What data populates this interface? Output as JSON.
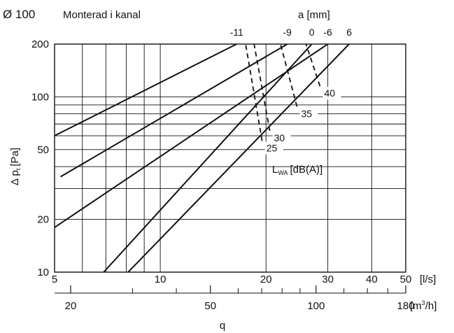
{
  "chart_data": {
    "type": "line",
    "title": "Ø 100",
    "subtitle": "Monterad i kanal",
    "xlabel": "q",
    "ylabel": "Δ p",
    "ylabel_sub": "t",
    "ylabel_unit": "[Pa]",
    "x_scale": "log",
    "y_scale": "log",
    "xlim": [
      5,
      50
    ],
    "ylim": [
      10,
      200
    ],
    "grid": true,
    "x_ticks": [
      {
        "value": 5,
        "label": "5"
      },
      {
        "value": 10,
        "label": "10"
      },
      {
        "value": 20,
        "label": "20"
      },
      {
        "value": 30,
        "label": "30"
      },
      {
        "value": 40,
        "label": "40"
      },
      {
        "value": 50,
        "label": "50"
      }
    ],
    "x_unit": "[l/s]",
    "x2_ticks": [
      {
        "value": 20,
        "label": "20"
      },
      {
        "value": 50,
        "label": "50"
      },
      {
        "value": 100,
        "label": "100"
      },
      {
        "value": 180,
        "label": "180"
      }
    ],
    "x2_unit_base": "[m",
    "x2_unit_sup": "3",
    "x2_unit_end": "/h]",
    "y_ticks": [
      {
        "value": 10,
        "label": "10"
      },
      {
        "value": 20,
        "label": "20"
      },
      {
        "value": 50,
        "label": "50"
      },
      {
        "value": 100,
        "label": "100"
      },
      {
        "value": 200,
        "label": "200"
      }
    ],
    "top_axis_label": "a [mm]",
    "series_label": "a [mm]",
    "series": [
      {
        "name": "-11",
        "x": [
          5,
          16.5
        ],
        "y": [
          60,
          200
        ]
      },
      {
        "name": "-9",
        "x": [
          5.2,
          23
        ],
        "y": [
          35,
          200
        ]
      },
      {
        "name": "-6",
        "x": [
          5,
          30
        ],
        "y": [
          18,
          200
        ]
      },
      {
        "name": "0",
        "x": [
          6.9,
          27
        ],
        "y": [
          10,
          200
        ]
      },
      {
        "name": "6",
        "x": [
          8.1,
          34.5
        ],
        "y": [
          10,
          200
        ]
      }
    ],
    "sound_label_base": "L",
    "sound_label_sub": "WA",
    "sound_label_unit": "[dB(A)]",
    "sound_lines": [
      {
        "label": "25",
        "x": [
          19.5,
          17.5
        ],
        "y": [
          56,
          200
        ]
      },
      {
        "label": "30",
        "x": [
          20.5,
          18.5
        ],
        "y": [
          64,
          200
        ]
      },
      {
        "label": "35",
        "x": [
          24.5,
          22
        ],
        "y": [
          88,
          200
        ]
      },
      {
        "label": "40",
        "x": [
          28.5,
          26
        ],
        "y": [
          115,
          200
        ]
      }
    ]
  }
}
